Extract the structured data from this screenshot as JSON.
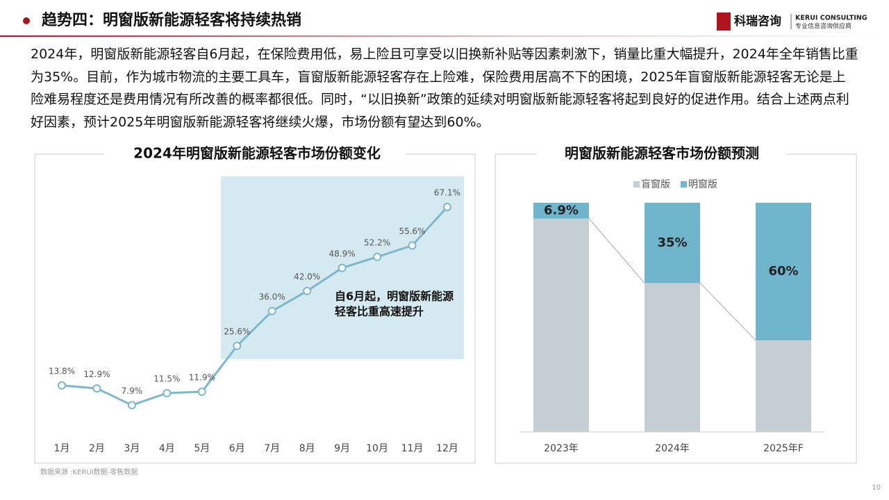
{
  "header": {
    "title": "趋势四：明窗版新能源轻客将持续热销",
    "logo": {
      "name": "科瑞咨询",
      "english": "KERUI CONSULTING",
      "tagline": "专业信息咨询供应商"
    }
  },
  "paragraph": "2024年，明窗版新能源轻客自6月起，在保险费用低，易上险且可享受以旧换新补贴等因素刺激下，销量比重大幅提升，2024年全年销售比重为35%。目前，作为城市物流的主要工具车，盲窗版新能源轻客存在上险难，保险费用居高不下的困境，2025年盲窗版新能源轻客无论是上险难易程度还是费用情况有所改善的概率都很低。同时，“以旧换新”政策的延续对明窗版新能源轻客将起到良好的促进作用。结合上述两点利好因素，预计2025年明窗版新能源轻客将继续火爆，市场份额有望达到60%。",
  "chart_data": [
    {
      "type": "line",
      "title": "2024年明窗版新能源轻客市场份额变化",
      "categories": [
        "1月",
        "2月",
        "3月",
        "4月",
        "5月",
        "6月",
        "7月",
        "8月",
        "9月",
        "10月",
        "11月",
        "12月"
      ],
      "values": [
        13.8,
        12.9,
        7.9,
        11.5,
        11.9,
        25.6,
        36.0,
        42.0,
        48.9,
        52.2,
        55.6,
        67.1
      ],
      "value_labels": [
        "13.8%",
        "12.9%",
        "7.9%",
        "11.5%",
        "11.9%",
        "25.6%",
        "36.0%",
        "42.0%",
        "48.9%",
        "52.2%",
        "55.6%",
        "67.1%"
      ],
      "color": "#7ab8cc",
      "annotation": "自6月起，明窗版新能源轻客比重高速提升"
    },
    {
      "type": "bar",
      "stacked": true,
      "title": "明窗版新能源轻客市场份额预测",
      "categories": [
        "2023年",
        "2024年",
        "2025年F"
      ],
      "legend": "top",
      "series": [
        {
          "name": "盲窗版",
          "color": "#c5cfd3",
          "values": [
            93.1,
            65,
            40
          ]
        },
        {
          "name": "明窗版",
          "color": "#6fb6cc",
          "values": [
            6.9,
            35,
            60
          ],
          "value_labels": [
            "6.9%",
            "35%",
            "60%"
          ]
        }
      ]
    }
  ],
  "source": "数据来源 :KERUI数据-零售数据",
  "page_number": 10
}
